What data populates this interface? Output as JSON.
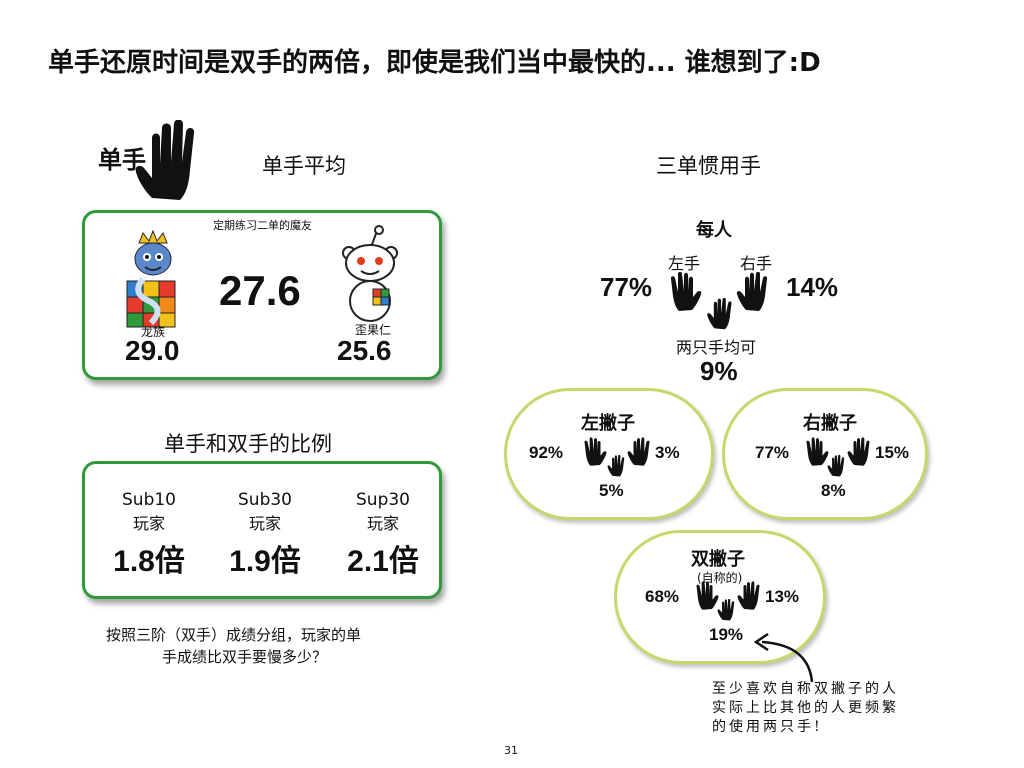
{
  "page_title": "单手还原时间是双手的两倍，即使是我们当中最快的... 谁想到了:D",
  "left": {
    "one_hand_tag": "单手",
    "avg_heading": "单手平均",
    "avg_card": {
      "caption": "定期练习二单的魔友",
      "average": "27.6",
      "person_left": {
        "name": "龙族",
        "time": "29.0"
      },
      "person_right": {
        "name": "歪果仁",
        "time": "25.6"
      }
    },
    "ratio_heading": "单手和双手的比例",
    "ratio_groups": [
      {
        "label": "Sub10",
        "sub": "玩家",
        "value": "1.8倍"
      },
      {
        "label": "Sub30",
        "sub": "玩家",
        "value": "1.9倍"
      },
      {
        "label": "Sup30",
        "sub": "玩家",
        "value": "2.1倍"
      }
    ],
    "note_line1": "按照三阶（双手）成绩分组，玩家的单",
    "note_line2": "手成绩比双手要慢多少？"
  },
  "right": {
    "heading": "三单惯用手",
    "per_person": {
      "label": "每人",
      "left_label": "左手",
      "right_label": "右手",
      "left_pct": "77%",
      "right_pct": "14%",
      "both_label": "两只手均可",
      "both_pct": "9%"
    },
    "lefty": {
      "title": "左撇子",
      "left_pct": "92%",
      "right_pct": "3%",
      "both_pct": "5%"
    },
    "righty": {
      "title": "右撇子",
      "left_pct": "77%",
      "right_pct": "15%",
      "both_pct": "8%"
    },
    "ambi": {
      "title": "双撇子",
      "subtitle": "(自称的)",
      "left_pct": "68%",
      "right_pct": "13%",
      "both_pct": "19%"
    },
    "annotation_line1": "至少喜欢自称双撇子的人",
    "annotation_line2": "实际上比其他的人更频繁",
    "annotation_line3": "的使用两只手!"
  },
  "page_number": "31"
}
